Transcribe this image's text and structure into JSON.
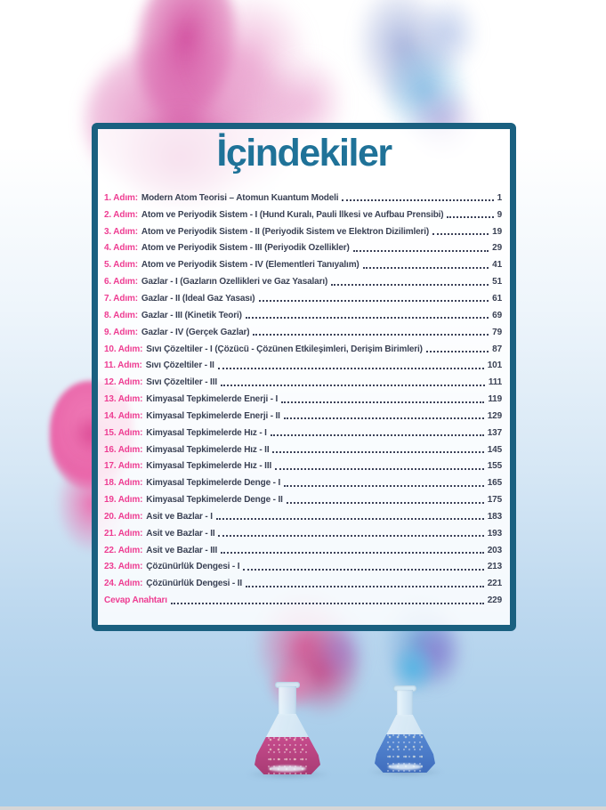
{
  "page": {
    "title": "İçindekiler"
  },
  "toc": {
    "entries": [
      {
        "label": "1. Adım:",
        "title": "Modern Atom Teorisi – Atomun Kuantum Modeli",
        "page": "1"
      },
      {
        "label": "2. Adım:",
        "title": "Atom ve Periyodik Sistem - I (Hund Kuralı, Pauli İlkesi ve Aufbau Prensibi)",
        "page": "9"
      },
      {
        "label": "3. Adım:",
        "title": "Atom ve Periyodik Sistem - II (Periyodik Sistem ve Elektron Dizilimleri)",
        "page": "19"
      },
      {
        "label": "4. Adım:",
        "title": "Atom ve Periyodik Sistem - III (Periyodik Özellikler)",
        "page": "29"
      },
      {
        "label": "5. Adım:",
        "title": "Atom ve Periyodik Sistem - IV (Elementleri Tanıyalım)",
        "page": "41"
      },
      {
        "label": "6. Adım:",
        "title": "Gazlar - I (Gazların Özellikleri ve Gaz Yasaları)",
        "page": "51"
      },
      {
        "label": "7. Adım:",
        "title": "Gazlar - II (İdeal Gaz Yasası)",
        "page": "61"
      },
      {
        "label": "8. Adım:",
        "title": "Gazlar - III (Kinetik Teori)",
        "page": "69"
      },
      {
        "label": "9. Adım:",
        "title": "Gazlar - IV (Gerçek Gazlar)",
        "page": "79"
      },
      {
        "label": "10. Adım:",
        "title": "Sıvı Çözeltiler - I (Çözücü - Çözünen Etkileşimleri, Derişim Birimleri)",
        "page": "87"
      },
      {
        "label": "11. Adım:",
        "title": "Sıvı Çözeltiler - II",
        "page": "101"
      },
      {
        "label": "12. Adım:",
        "title": "Sıvı Çözeltiler - III",
        "page": "111"
      },
      {
        "label": "13. Adım:",
        "title": "Kimyasal Tepkimelerde Enerji - I",
        "page": "119"
      },
      {
        "label": "14. Adım:",
        "title": "Kimyasal Tepkimelerde Enerji - II",
        "page": "129"
      },
      {
        "label": "15. Adım:",
        "title": "Kimyasal Tepkimelerde Hız - I",
        "page": "137"
      },
      {
        "label": "16. Adım:",
        "title": "Kimyasal Tepkimelerde Hız - II",
        "page": "145"
      },
      {
        "label": "17. Adım:",
        "title": "Kimyasal Tepkimelerde Hız - III",
        "page": "155"
      },
      {
        "label": "18. Adım:",
        "title": "Kimyasal Tepkimelerde Denge - I",
        "page": "165"
      },
      {
        "label": "19. Adım:",
        "title": "Kimyasal Tepkimelerde Denge - II",
        "page": "175"
      },
      {
        "label": "20. Adım:",
        "title": "Asit ve Bazlar - I",
        "page": "183"
      },
      {
        "label": "21. Adım:",
        "title": "Asit ve Bazlar - II",
        "page": "193"
      },
      {
        "label": "22. Adım:",
        "title": "Asit ve Bazlar - III",
        "page": "203"
      },
      {
        "label": "23. Adım:",
        "title": "Çözünürlük Dengesi - I",
        "page": "213"
      },
      {
        "label": "24. Adım:",
        "title": "Çözünürlük Dengesi - II",
        "page": "221"
      },
      {
        "label": "Cevap Anahtarı",
        "title": "",
        "page": "229"
      }
    ]
  },
  "colors": {
    "frame_teal": "#1a6080",
    "title_teal": "#1f7298",
    "accent_pink": "#ee3d92",
    "text_dark": "#3a4154",
    "flask_pink_liquid": "#c64b8c",
    "flask_blue_liquid": "#4d7fcb",
    "background_blue": "#a3cbe9"
  }
}
